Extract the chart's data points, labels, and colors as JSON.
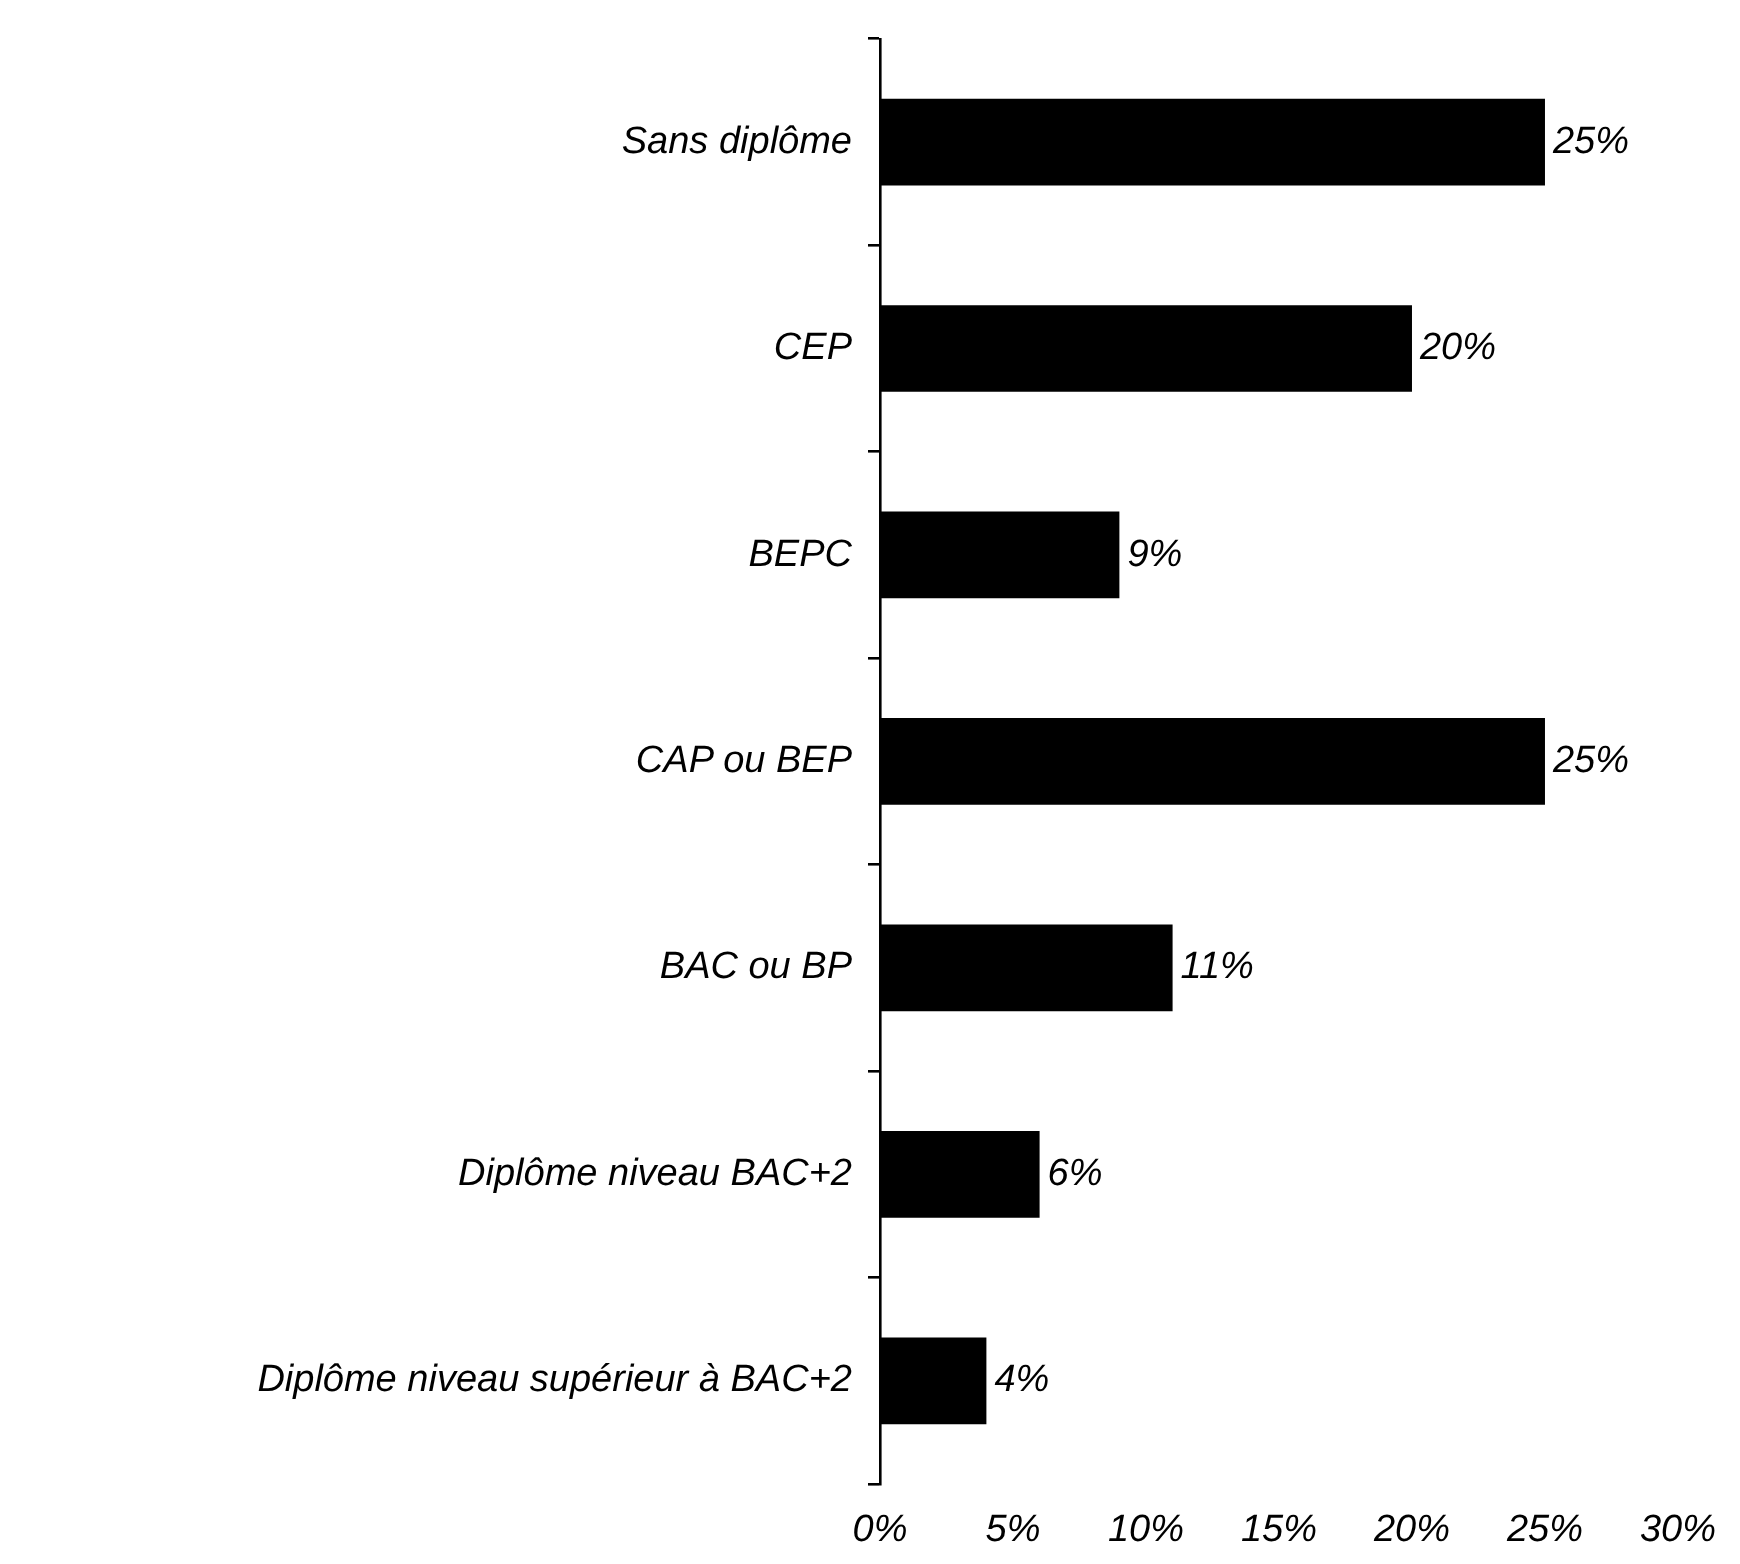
{
  "chart_data": {
    "type": "bar",
    "orientation": "horizontal",
    "categories": [
      "Sans diplôme",
      "CEP",
      "BEPC",
      "CAP ou BEP",
      "BAC ou BP",
      "Diplôme niveau BAC+2",
      "Diplôme niveau supérieur à BAC+2"
    ],
    "values": [
      25,
      20,
      9,
      25,
      11,
      6,
      4
    ],
    "value_labels": [
      "25%",
      "20%",
      "9%",
      "25%",
      "11%",
      "6%",
      "4%"
    ],
    "color": "#000000",
    "xlim": [
      0,
      30
    ],
    "xticks": [
      {
        "value": 0,
        "label": "0%"
      },
      {
        "value": 5,
        "label": "5%"
      },
      {
        "value": 10,
        "label": "10%"
      },
      {
        "value": 15,
        "label": "15%"
      },
      {
        "value": 20,
        "label": "20%"
      },
      {
        "value": 25,
        "label": "25%"
      },
      {
        "value": 30,
        "label": "30%"
      }
    ],
    "grid": false,
    "legend": false
  }
}
